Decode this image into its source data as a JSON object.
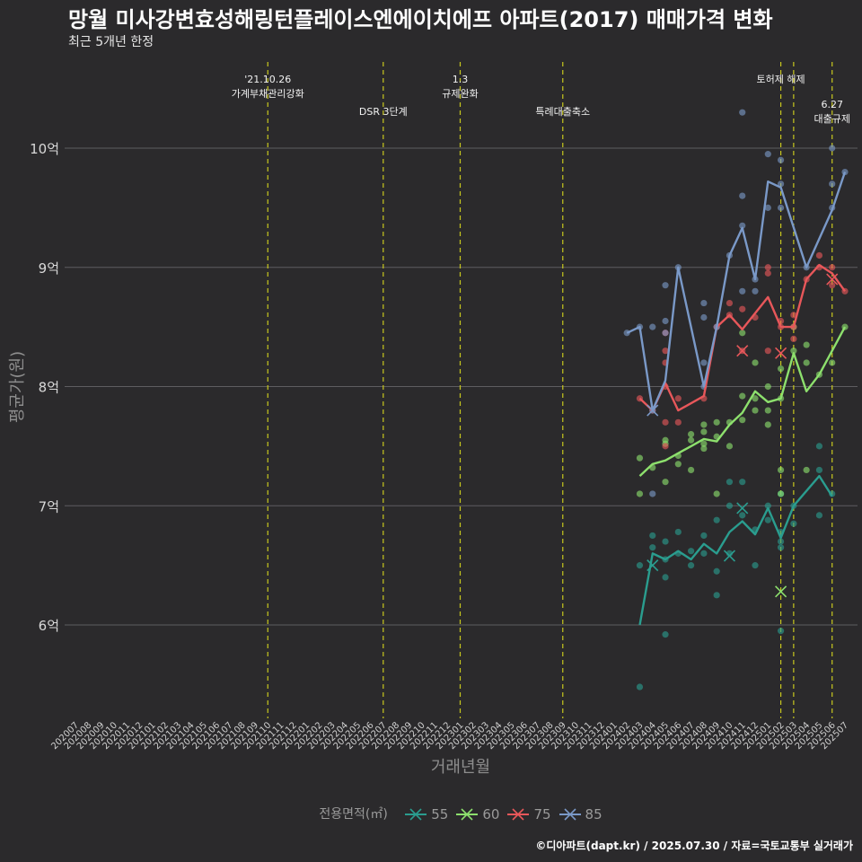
{
  "title": "망월 미사강변효성해링턴플레이스엔에이치에프 아파트(2017) 매매가격 변화",
  "subtitle": "최근 5개년 한정",
  "caption": "©디아파트(dapt.kr) / 2025.07.30 / 자료=국토교통부 실거래가",
  "chart_data": {
    "type": "line",
    "xlabel": "거래년월",
    "ylabel": "평균가(원)",
    "ylim": [
      5.2,
      10.5
    ],
    "y_ticks": [
      6,
      7,
      8,
      9,
      10
    ],
    "y_tick_labels": [
      "6억",
      "7억",
      "8억",
      "9억",
      "10억"
    ],
    "grid": true,
    "legend_position": "bottom",
    "legend_title": "전용면적(㎡)",
    "x_categories": [
      "202007",
      "202008",
      "202009",
      "202010",
      "202011",
      "202012",
      "202101",
      "202102",
      "202103",
      "202104",
      "202105",
      "202106",
      "202107",
      "202108",
      "202109",
      "202110",
      "202111",
      "202112",
      "202201",
      "202202",
      "202203",
      "202204",
      "202205",
      "202206",
      "202207",
      "202208",
      "202209",
      "202210",
      "202211",
      "202212",
      "202301",
      "202302",
      "202303",
      "202304",
      "202305",
      "202306",
      "202307",
      "202308",
      "202309",
      "202310",
      "202311",
      "202312",
      "202401",
      "202402",
      "202403",
      "202404",
      "202405",
      "202406",
      "202407",
      "202408",
      "202409",
      "202410",
      "202411",
      "202412",
      "202501",
      "202502",
      "202503",
      "202504",
      "202505",
      "202506",
      "202507"
    ],
    "events": [
      {
        "x": "202110",
        "label": "'21.10.26\n가계부채관리강화",
        "row": 0
      },
      {
        "x": "202207",
        "label": "DSR 3단계",
        "row": 1
      },
      {
        "x": "202301",
        "label": "1.3\n규제완화",
        "row": 0
      },
      {
        "x": "202309",
        "label": "특례대출축소",
        "row": 1
      },
      {
        "x": "202502",
        "label": "토허제 해제",
        "row": 0
      },
      {
        "x": "202503",
        "label": "",
        "row": 0
      },
      {
        "x": "202506",
        "label": "6.27\n대출규제",
        "row": 2
      }
    ],
    "series": [
      {
        "name": "55",
        "color": "#2a9d8f",
        "line": [
          [
            "202403",
            6.0
          ],
          [
            "202404",
            6.6
          ],
          [
            "202405",
            6.55
          ],
          [
            "202406",
            6.62
          ],
          [
            "202407",
            6.55
          ],
          [
            "202408",
            6.68
          ],
          [
            "202409",
            6.6
          ],
          [
            "202410",
            6.78
          ],
          [
            "202411",
            6.87
          ],
          [
            "202412",
            6.76
          ],
          [
            "202501",
            6.98
          ],
          [
            "202502",
            6.73
          ],
          [
            "202503",
            7.0
          ],
          [
            "202505",
            7.25
          ],
          [
            "202506",
            7.08
          ]
        ],
        "points": [
          [
            "202403",
            5.48
          ],
          [
            "202403",
            6.5
          ],
          [
            "202404",
            6.65
          ],
          [
            "202404",
            6.75
          ],
          [
            "202405",
            6.4
          ],
          [
            "202405",
            6.55
          ],
          [
            "202405",
            6.7
          ],
          [
            "202405",
            5.92
          ],
          [
            "202406",
            6.6
          ],
          [
            "202406",
            6.78
          ],
          [
            "202407",
            6.5
          ],
          [
            "202407",
            6.62
          ],
          [
            "202408",
            6.6
          ],
          [
            "202408",
            6.75
          ],
          [
            "202409",
            6.25
          ],
          [
            "202409",
            6.45
          ],
          [
            "202409",
            6.88
          ],
          [
            "202410",
            6.6
          ],
          [
            "202410",
            7.0
          ],
          [
            "202410",
            7.2
          ],
          [
            "202411",
            6.92
          ],
          [
            "202411",
            7.2
          ],
          [
            "202412",
            6.5
          ],
          [
            "202412",
            6.8
          ],
          [
            "202501",
            6.88
          ],
          [
            "202501",
            7.0
          ],
          [
            "202502",
            5.95
          ],
          [
            "202502",
            6.65
          ],
          [
            "202502",
            6.7
          ],
          [
            "202502",
            6.78
          ],
          [
            "202502",
            7.1
          ],
          [
            "202503",
            6.85
          ],
          [
            "202503",
            7.0
          ],
          [
            "202505",
            7.3
          ],
          [
            "202505",
            7.5
          ],
          [
            "202505",
            6.92
          ],
          [
            "202506",
            7.1
          ]
        ],
        "x_marks": [
          [
            "202404",
            6.5
          ],
          [
            "202410",
            6.58
          ],
          [
            "202411",
            6.98
          ]
        ]
      },
      {
        "name": "60",
        "color": "#8de06d",
        "line": [
          [
            "202403",
            7.25
          ],
          [
            "202404",
            7.35
          ],
          [
            "202405",
            7.38
          ],
          [
            "202406",
            7.44
          ],
          [
            "202407",
            7.5
          ],
          [
            "202408",
            7.56
          ],
          [
            "202409",
            7.54
          ],
          [
            "202410",
            7.68
          ],
          [
            "202411",
            7.78
          ],
          [
            "202412",
            7.96
          ],
          [
            "202501",
            7.87
          ],
          [
            "202502",
            7.9
          ],
          [
            "202503",
            8.28
          ],
          [
            "202504",
            7.96
          ],
          [
            "202505",
            8.1
          ],
          [
            "202506",
            8.3
          ],
          [
            "202507",
            8.5
          ]
        ],
        "points": [
          [
            "202403",
            7.1
          ],
          [
            "202403",
            7.4
          ],
          [
            "202404",
            7.32
          ],
          [
            "202405",
            7.2
          ],
          [
            "202405",
            7.52
          ],
          [
            "202405",
            7.55
          ],
          [
            "202406",
            7.35
          ],
          [
            "202406",
            7.42
          ],
          [
            "202407",
            7.3
          ],
          [
            "202407",
            7.55
          ],
          [
            "202407",
            7.6
          ],
          [
            "202408",
            7.48
          ],
          [
            "202408",
            7.52
          ],
          [
            "202408",
            7.62
          ],
          [
            "202408",
            7.68
          ],
          [
            "202409",
            7.1
          ],
          [
            "202409",
            7.58
          ],
          [
            "202409",
            7.7
          ],
          [
            "202410",
            7.5
          ],
          [
            "202410",
            7.7
          ],
          [
            "202411",
            7.72
          ],
          [
            "202411",
            7.92
          ],
          [
            "202411",
            8.45
          ],
          [
            "202412",
            7.8
          ],
          [
            "202412",
            7.9
          ],
          [
            "202412",
            8.2
          ],
          [
            "202501",
            7.68
          ],
          [
            "202501",
            7.8
          ],
          [
            "202501",
            8.0
          ],
          [
            "202502",
            7.1
          ],
          [
            "202502",
            7.3
          ],
          [
            "202502",
            7.9
          ],
          [
            "202502",
            8.15
          ],
          [
            "202503",
            8.3
          ],
          [
            "202503",
            8.5
          ],
          [
            "202504",
            7.3
          ],
          [
            "202504",
            8.2
          ],
          [
            "202504",
            8.35
          ],
          [
            "202505",
            8.1
          ],
          [
            "202506",
            8.2
          ],
          [
            "202507",
            8.5
          ]
        ],
        "x_marks": [
          [
            "202502",
            6.28
          ]
        ]
      },
      {
        "name": "75",
        "color": "#e8575a",
        "line": [
          [
            "202403",
            7.9
          ],
          [
            "202404",
            7.8
          ],
          [
            "202405",
            8.03
          ],
          [
            "202406",
            7.8
          ],
          [
            "202408",
            7.92
          ],
          [
            "202409",
            8.5
          ],
          [
            "202410",
            8.6
          ],
          [
            "202411",
            8.48
          ],
          [
            "202501",
            8.75
          ],
          [
            "202502",
            8.5
          ],
          [
            "202503",
            8.5
          ],
          [
            "202504",
            8.9
          ],
          [
            "202505",
            9.02
          ],
          [
            "202506",
            8.95
          ],
          [
            "202507",
            8.8
          ]
        ],
        "points": [
          [
            "202403",
            7.9
          ],
          [
            "202404",
            7.8
          ],
          [
            "202405",
            7.5
          ],
          [
            "202405",
            7.7
          ],
          [
            "202405",
            8.0
          ],
          [
            "202405",
            8.2
          ],
          [
            "202405",
            8.3
          ],
          [
            "202405",
            8.45
          ],
          [
            "202406",
            7.7
          ],
          [
            "202406",
            7.9
          ],
          [
            "202408",
            7.9
          ],
          [
            "202409",
            8.5
          ],
          [
            "202410",
            8.6
          ],
          [
            "202410",
            8.7
          ],
          [
            "202411",
            8.3
          ],
          [
            "202411",
            8.65
          ],
          [
            "202412",
            8.58
          ],
          [
            "202501",
            8.3
          ],
          [
            "202501",
            8.95
          ],
          [
            "202501",
            9.0
          ],
          [
            "202502",
            8.5
          ],
          [
            "202502",
            8.55
          ],
          [
            "202503",
            8.4
          ],
          [
            "202503",
            8.5
          ],
          [
            "202503",
            8.6
          ],
          [
            "202504",
            8.9
          ],
          [
            "202505",
            9.0
          ],
          [
            "202505",
            9.1
          ],
          [
            "202506",
            8.85
          ],
          [
            "202506",
            9.0
          ],
          [
            "202507",
            8.8
          ]
        ],
        "x_marks": [
          [
            "202411",
            8.3
          ],
          [
            "202502",
            8.28
          ],
          [
            "202506",
            8.9
          ]
        ]
      },
      {
        "name": "85",
        "color": "#7a99c8",
        "line": [
          [
            "202402",
            8.45
          ],
          [
            "202403",
            8.5
          ],
          [
            "202404",
            7.8
          ],
          [
            "202405",
            8.05
          ],
          [
            "202406",
            9.0
          ],
          [
            "202408",
            8.0
          ],
          [
            "202409",
            8.5
          ],
          [
            "202410",
            9.1
          ],
          [
            "202411",
            9.33
          ],
          [
            "202412",
            8.9
          ],
          [
            "202501",
            9.72
          ],
          [
            "202502",
            9.67
          ],
          [
            "202504",
            9.0
          ],
          [
            "202506",
            9.48
          ],
          [
            "202507",
            9.8
          ]
        ],
        "points": [
          [
            "202402",
            8.45
          ],
          [
            "202403",
            8.5
          ],
          [
            "202404",
            7.8
          ],
          [
            "202404",
            8.5
          ],
          [
            "202404",
            7.1
          ],
          [
            "202405",
            8.45
          ],
          [
            "202405",
            8.55
          ],
          [
            "202405",
            8.85
          ],
          [
            "202406",
            9.0
          ],
          [
            "202408",
            8.0
          ],
          [
            "202408",
            8.2
          ],
          [
            "202408",
            8.58
          ],
          [
            "202408",
            8.7
          ],
          [
            "202409",
            8.5
          ],
          [
            "202410",
            9.1
          ],
          [
            "202411",
            8.8
          ],
          [
            "202411",
            9.35
          ],
          [
            "202411",
            9.6
          ],
          [
            "202411",
            10.3
          ],
          [
            "202412",
            8.8
          ],
          [
            "202412",
            8.9
          ],
          [
            "202501",
            9.5
          ],
          [
            "202501",
            9.95
          ],
          [
            "202502",
            9.5
          ],
          [
            "202502",
            9.7
          ],
          [
            "202502",
            9.9
          ],
          [
            "202504",
            9.0
          ],
          [
            "202506",
            9.5
          ],
          [
            "202506",
            9.7
          ],
          [
            "202506",
            10.0
          ],
          [
            "202507",
            9.8
          ]
        ],
        "x_marks": [
          [
            "202404",
            7.8
          ]
        ]
      }
    ]
  }
}
